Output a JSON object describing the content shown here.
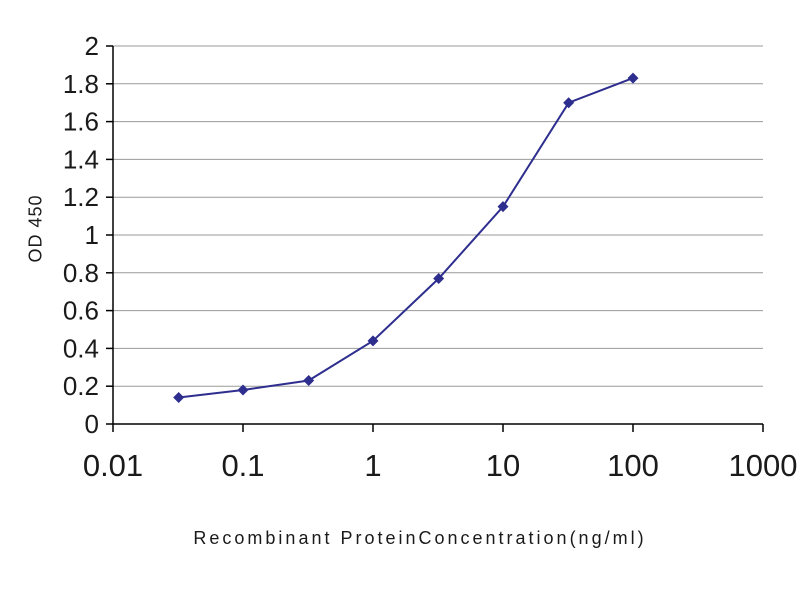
{
  "page": {
    "background": "#ffffff"
  },
  "chart_data": {
    "type": "line",
    "title": "",
    "xlabel": "Recombinant ProteinConcentration(ng/ml)",
    "ylabel": "OD 450",
    "x_scale": "log",
    "xlim": [
      0.01,
      1000
    ],
    "ylim": [
      0,
      2
    ],
    "x_tick_values": [
      0.01,
      0.1,
      1,
      10,
      100,
      1000
    ],
    "x_tick_labels": [
      "0.01",
      "0.1",
      "1",
      "10",
      "100",
      "1000"
    ],
    "y_tick_values": [
      0,
      0.2,
      0.4,
      0.6,
      0.8,
      1,
      1.2,
      1.4,
      1.6,
      1.8,
      2
    ],
    "y_tick_labels": [
      "0",
      "0.2",
      "0.4",
      "0.6",
      "0.8",
      "1",
      "1.2",
      "1.4",
      "1.6",
      "1.8",
      "2"
    ],
    "grid": "horizontal",
    "legend": "none",
    "series": [
      {
        "name": "OD 450",
        "x": [
          0.032,
          0.1,
          0.32,
          1,
          3.2,
          10,
          32,
          100
        ],
        "y": [
          0.14,
          0.18,
          0.23,
          0.44,
          0.77,
          1.15,
          1.7,
          1.83
        ],
        "color": "#2e2e8f",
        "marker": "diamond"
      }
    ],
    "gridline_color": "#9a9a9a",
    "axis_color": "#000000",
    "text_color": "#1a1a1a"
  }
}
